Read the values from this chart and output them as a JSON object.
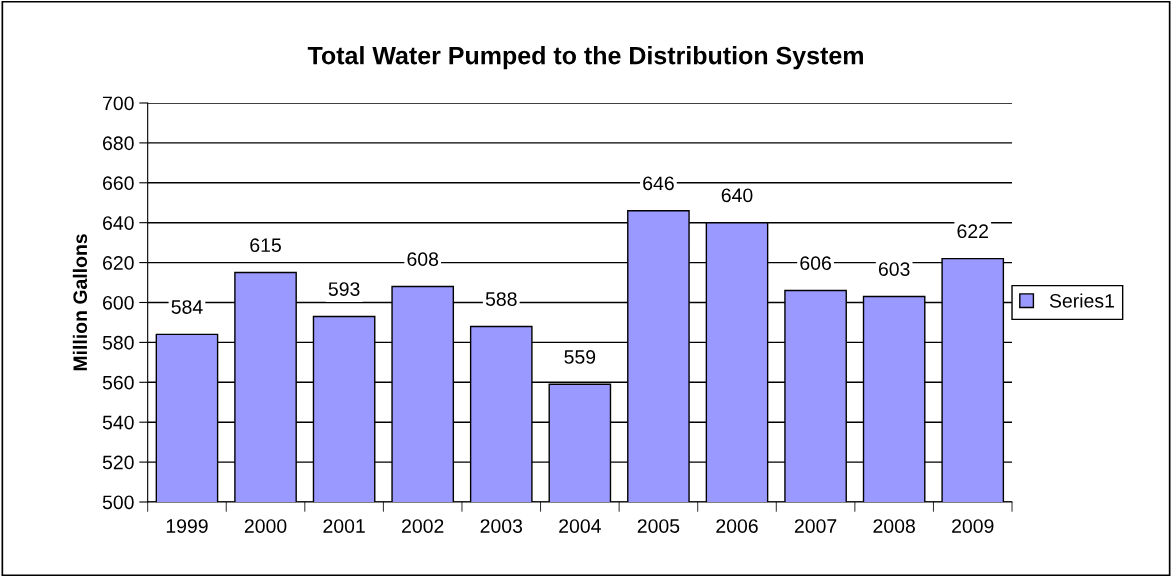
{
  "chart_data": {
    "type": "bar",
    "title": "Total Water Pumped to the Distribution System",
    "ylabel": "Million Gallons",
    "categories": [
      "1999",
      "2000",
      "2001",
      "2002",
      "2003",
      "2004",
      "2005",
      "2006",
      "2007",
      "2008",
      "2009"
    ],
    "series": [
      {
        "name": "Series1",
        "color": "#9999ff",
        "values": [
          584,
          615,
          593,
          608,
          588,
          559,
          646,
          640,
          606,
          603,
          622
        ]
      }
    ],
    "ylim": [
      500,
      700
    ],
    "yticks": [
      500,
      520,
      540,
      560,
      580,
      600,
      620,
      640,
      660,
      680,
      700
    ],
    "grid": "y",
    "legend": "right",
    "data_labels": true
  }
}
